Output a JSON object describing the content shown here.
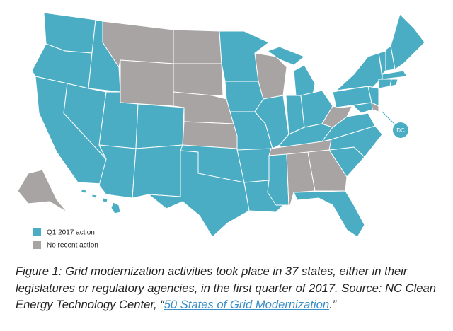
{
  "legend": [
    {
      "label": "Q1 2017 action",
      "color": "#4badc4"
    },
    {
      "label": "No recent action",
      "color": "#a8a4a3"
    }
  ],
  "dc_label": "DC",
  "caption": {
    "before": "Figure 1: Grid modernization activities took place in 37 states, either in their legislatures or regulatory agencies, in the first quarter of 2017. Source: NC Clean Energy Technology Center, “",
    "link": "50 States of Grid Modernization",
    "after": ".”"
  }
}
